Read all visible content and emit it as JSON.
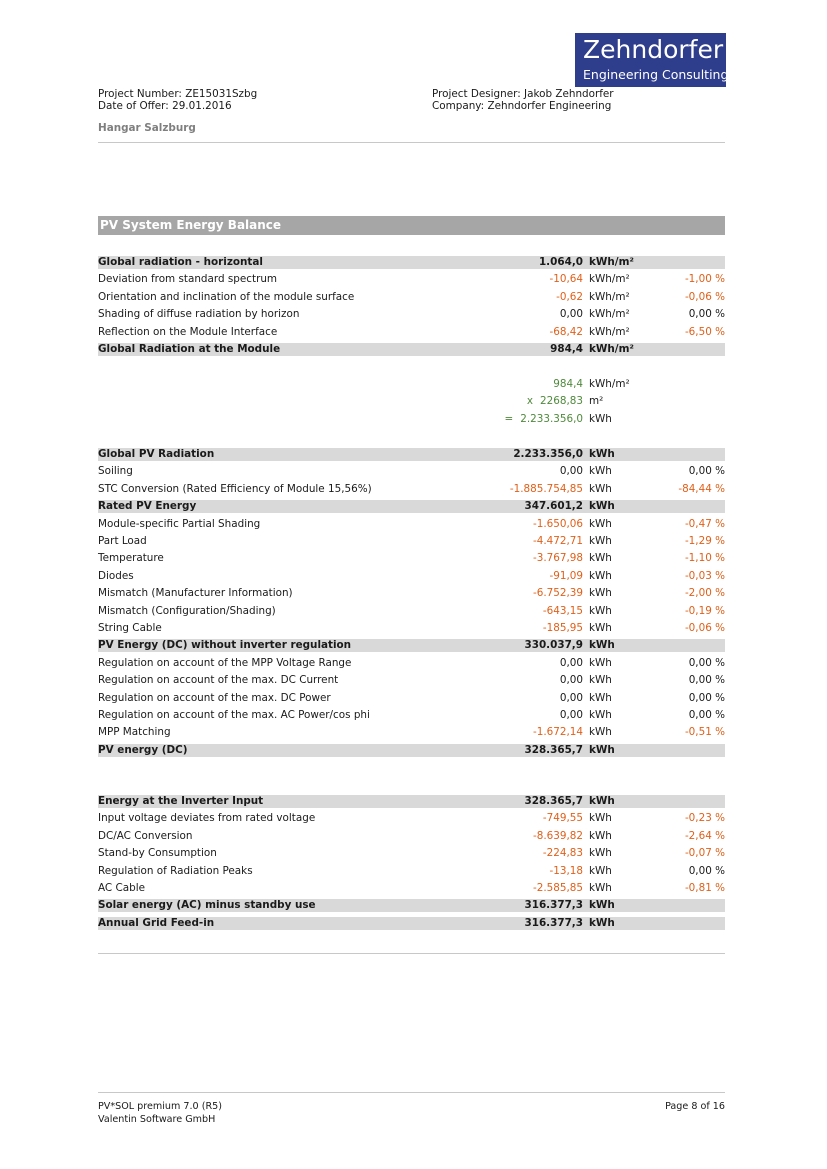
{
  "logo": {
    "name": "Zehndorfer",
    "tagline": "Engineering Consulting"
  },
  "header": {
    "project_number": "Project Number: ZE15031Szbg",
    "date_of_offer": "Date of Offer: 29.01.2016",
    "project_designer": "Project Designer: Jakob Zehndorfer",
    "company": "Company: Zehndorfer Engineering",
    "project_name": "Hangar Salzburg"
  },
  "section": {
    "title": "PV System Energy Balance",
    "radiation_rows": [
      {
        "label": "Global radiation - horizontal",
        "value": "1.064,0",
        "unit": "kWh/m²"
      },
      {
        "label": "Deviation from standard spectrum",
        "value": "-10,64",
        "unit": "kWh/m²",
        "percent": "-1,00 %"
      },
      {
        "label": "Orientation and inclination of the module surface",
        "value": "-0,62",
        "unit": "kWh/m²",
        "percent": "-0,06 %"
      },
      {
        "label": "Shading of diffuse radiation by horizon",
        "value": "0,00",
        "unit": "kWh/m²",
        "percent": "0,00 %"
      },
      {
        "label": "Reflection on the Module Interface",
        "value": "-68,42",
        "unit": "kWh/m²",
        "percent": "-6,50 %"
      },
      {
        "label": "Global Radiation at the Module",
        "value": "984,4",
        "unit": "kWh/m²"
      }
    ],
    "calculation": [
      {
        "value": "984,4",
        "unit": "kWh/m²"
      },
      {
        "op": "x",
        "value": "2268,83",
        "unit": "m²"
      },
      {
        "op": "=",
        "value": "2.233.356,0",
        "unit": "kWh"
      }
    ],
    "energy_rows": [
      {
        "label": "Global PV Radiation",
        "value": "2.233.356,0",
        "unit": "kWh"
      },
      {
        "label": "Soiling",
        "value": "0,00",
        "unit": "kWh",
        "percent": "0,00 %"
      },
      {
        "label": "STC Conversion (Rated Efficiency of Module 15,56%)",
        "value": "-1.885.754,85",
        "unit": "kWh",
        "percent": "-84,44 %"
      },
      {
        "label": "Rated PV Energy",
        "value": "347.601,2",
        "unit": "kWh"
      },
      {
        "label": "Module-specific Partial Shading",
        "value": "-1.650,06",
        "unit": "kWh",
        "percent": "-0,47 %"
      },
      {
        "label": "Part Load",
        "value": "-4.472,71",
        "unit": "kWh",
        "percent": "-1,29 %"
      },
      {
        "label": "Temperature",
        "value": "-3.767,98",
        "unit": "kWh",
        "percent": "-1,10 %"
      },
      {
        "label": "Diodes",
        "value": "-91,09",
        "unit": "kWh",
        "percent": "-0,03 %"
      },
      {
        "label": "Mismatch (Manufacturer Information)",
        "value": "-6.752,39",
        "unit": "kWh",
        "percent": "-2,00 %"
      },
      {
        "label": "Mismatch (Configuration/Shading)",
        "value": "-643,15",
        "unit": "kWh",
        "percent": "-0,19 %"
      },
      {
        "label": "String Cable",
        "value": "-185,95",
        "unit": "kWh",
        "percent": "-0,06 %"
      },
      {
        "label": "PV Energy (DC) without inverter regulation",
        "value": "330.037,9",
        "unit": "kWh"
      },
      {
        "label": "Regulation on account of the MPP Voltage Range",
        "value": "0,00",
        "unit": "kWh",
        "percent": "0,00 %"
      },
      {
        "label": "Regulation on account of the max. DC Current",
        "value": "0,00",
        "unit": "kWh",
        "percent": "0,00 %"
      },
      {
        "label": "Regulation on account of the max. DC Power",
        "value": "0,00",
        "unit": "kWh",
        "percent": "0,00 %"
      },
      {
        "label": "Regulation on account of the max. AC Power/cos phi",
        "value": "0,00",
        "unit": "kWh",
        "percent": "0,00 %"
      },
      {
        "label": "MPP Matching",
        "value": "-1.672,14",
        "unit": "kWh",
        "percent": "-0,51 %"
      },
      {
        "label": "PV energy (DC)",
        "value": "328.365,7",
        "unit": "kWh"
      }
    ],
    "inverter_rows": [
      {
        "label": "Energy at the Inverter Input",
        "value": "328.365,7",
        "unit": "kWh"
      },
      {
        "label": "Input voltage deviates from rated voltage",
        "value": "-749,55",
        "unit": "kWh",
        "percent": "-0,23 %"
      },
      {
        "label": "DC/AC Conversion",
        "value": "-8.639,82",
        "unit": "kWh",
        "percent": "-2,64 %"
      },
      {
        "label": "Stand-by Consumption",
        "value": "-224,83",
        "unit": "kWh",
        "percent": "-0,07 %"
      },
      {
        "label": "Regulation of Radiation Peaks",
        "value": "-13,18",
        "unit": "kWh",
        "percent": "0,00 %"
      },
      {
        "label": "AC Cable",
        "value": "-2.585,85",
        "unit": "kWh",
        "percent": "-0,81 %"
      },
      {
        "label": "Solar energy (AC) minus standby use",
        "value": "316.377,3",
        "unit": "kWh"
      },
      {
        "label": "Annual Grid Feed-in",
        "value": "316.377,3",
        "unit": "kWh"
      }
    ]
  },
  "footer": {
    "software": "PV*SOL premium 7.0 (R5)",
    "vendor": "Valentin Software GmbH",
    "page": "Page 8 of 16"
  }
}
